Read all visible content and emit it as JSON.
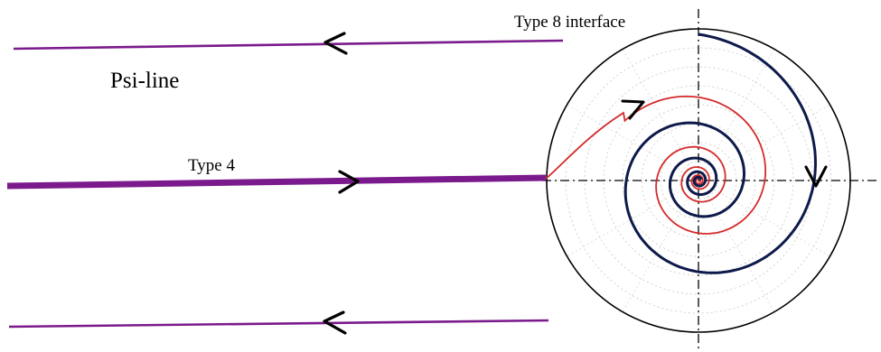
{
  "labels": {
    "psi_line": "Psi-line",
    "type4": "Type 4",
    "type8": "Type 8 interface"
  },
  "colors": {
    "psi_line": "#7b1a8c",
    "type4_line": "#7b1a8c",
    "red_spiral": "#d42a2a",
    "dark_spiral": "#0d1a4a",
    "grid": "#c8c8c8",
    "outer_circle": "#000000",
    "axes": "#000000",
    "arrow": "#000000"
  }
}
